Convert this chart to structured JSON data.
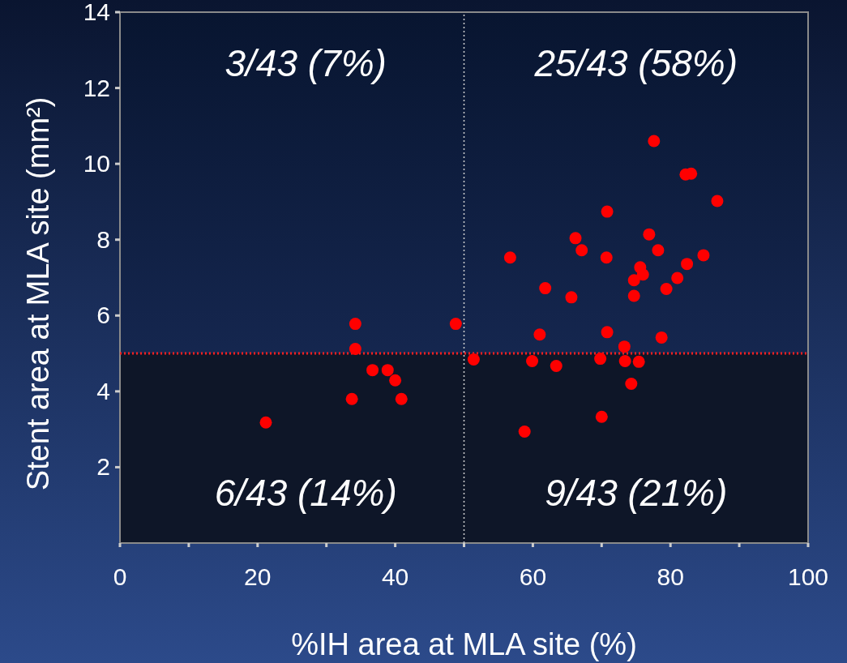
{
  "chart_data": {
    "type": "scatter",
    "xlabel": "%IH area at MLA site (%)",
    "ylabel": "Stent area at MLA site (mm²)",
    "xlim": [
      0,
      100
    ],
    "ylim": [
      0,
      14
    ],
    "xticks": [
      0,
      {
        "value": 10,
        "label": null
      },
      20,
      {
        "value": 30,
        "label": null
      },
      40,
      {
        "value": 50,
        "label": null
      },
      60,
      {
        "value": 70,
        "label": null
      },
      80,
      {
        "value": 90,
        "label": null
      },
      100
    ],
    "yticks": [
      2,
      4,
      6,
      8,
      10,
      12,
      14
    ],
    "grid": false,
    "marker": "circle",
    "x": [
      21.2,
      33.7,
      34.2,
      34.2,
      36.7,
      38.9,
      40.0,
      40.9,
      48.8,
      51.4,
      56.7,
      58.8,
      59.9,
      61.0,
      61.8,
      63.4,
      65.6,
      66.2,
      67.1,
      69.8,
      70.0,
      70.7,
      70.8,
      70.8,
      73.3,
      73.4,
      74.3,
      74.7,
      74.7,
      75.4,
      75.6,
      76.0,
      76.9,
      77.6,
      78.2,
      78.7,
      79.4,
      81.0,
      82.2,
      82.4,
      83.0,
      84.8,
      86.8
    ],
    "series": [
      {
        "color": "#ff0000",
        "values": [
          3.18,
          3.8,
          5.78,
          5.12,
          4.56,
          4.56,
          4.29,
          3.8,
          5.78,
          4.84,
          7.53,
          2.94,
          4.8,
          5.5,
          6.72,
          4.67,
          6.48,
          8.04,
          7.72,
          4.86,
          3.33,
          7.53,
          5.56,
          8.74,
          5.18,
          4.8,
          4.2,
          6.52,
          6.93,
          4.78,
          7.27,
          7.08,
          8.14,
          10.6,
          7.72,
          5.42,
          6.7,
          6.99,
          9.72,
          7.36,
          9.74,
          7.59,
          9.02
        ]
      }
    ],
    "ref_lines": [
      {
        "axis": "x",
        "value": 50,
        "color": "#d0d0d0",
        "line_style": "dotted"
      },
      {
        "axis": "y",
        "value": 5,
        "color": "#ff2020",
        "line_style": "dotted"
      }
    ],
    "bands": [
      {
        "axis": "y",
        "from": 0,
        "to": 5,
        "color": "#0e1628"
      }
    ],
    "annotations": [
      "3/43 (7%)",
      "25/43 (58%)",
      "6/43 (14%)",
      "9/43 (21%)"
    ]
  }
}
